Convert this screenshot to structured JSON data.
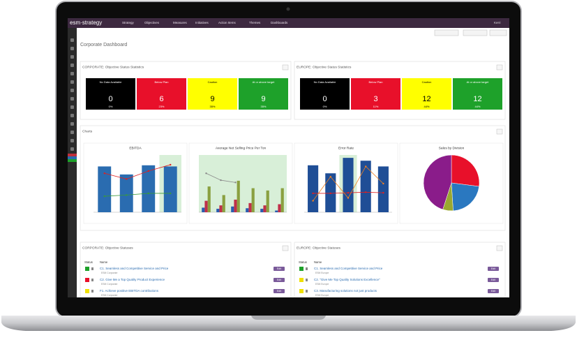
{
  "nav": {
    "logo": "esm·strategy",
    "items": [
      "Strategy",
      "Objectives",
      "Measures",
      "Initiatives",
      "Action Items",
      "Themes",
      "Dashboards"
    ],
    "user": "Kerri"
  },
  "page_title": "Corporate Dashboard",
  "stat_panels": [
    {
      "title": "CORPORATE: Objective Status Statistics",
      "tiles": [
        {
          "label": "No Data Available",
          "count": "0",
          "percent": "0%",
          "color": "#000000",
          "text_color": "#ffffff"
        },
        {
          "label": "Below Plan",
          "count": "6",
          "percent": "23%",
          "color": "#e8102a",
          "text_color": "#ffffff"
        },
        {
          "label": "Caution",
          "count": "9",
          "percent": "35%",
          "color": "#ffff00",
          "text_color": "#000000"
        },
        {
          "label": "At or above target",
          "count": "9",
          "percent": "35%",
          "color": "#1ea12a",
          "text_color": "#ffffff"
        }
      ]
    },
    {
      "title": "EUROPE: Objective Status Statistics",
      "tiles": [
        {
          "label": "No Data Available",
          "count": "0",
          "percent": "0%",
          "color": "#000000",
          "text_color": "#ffffff"
        },
        {
          "label": "Below Plan",
          "count": "3",
          "percent": "11%",
          "color": "#e8102a",
          "text_color": "#ffffff"
        },
        {
          "label": "Caution",
          "count": "12",
          "percent": "44%",
          "color": "#ffff00",
          "text_color": "#000000"
        },
        {
          "label": "At or above target",
          "count": "12",
          "percent": "44%",
          "color": "#1ea12a",
          "text_color": "#ffffff"
        }
      ]
    }
  ],
  "charts_panel": {
    "title": "Charts",
    "charts": [
      {
        "type": "combo",
        "title": "EBITDA",
        "ylim": [
          0,
          100
        ],
        "bars": [
          {
            "color": "#2a6cb0",
            "values": [
              80,
              66,
              82,
              80
            ]
          }
        ],
        "lines": [
          {
            "color": "#e02020",
            "values": [
              68,
              58,
              72,
              83
            ]
          },
          {
            "color": "#3a9a3a",
            "values": [
              28,
              30,
              33,
              33
            ]
          }
        ]
      },
      {
        "type": "combo",
        "title": "Average Net Selling Price Per Ton",
        "ylim": [
          0,
          100
        ],
        "bars": [
          {
            "color": "#2a5cb0",
            "values": [
              8,
              6,
              10,
              7,
              6,
              3
            ]
          },
          {
            "color": "#c0304a",
            "values": [
              20,
              12,
              22,
              16,
              12,
              14
            ]
          },
          {
            "color": "#8aa040",
            "values": [
              45,
              30,
              55,
              42,
              38,
              42
            ]
          }
        ],
        "lines": [
          {
            "color": "#8a8a8a",
            "values": [
              68,
              56,
              52,
              null,
              null,
              null
            ]
          }
        ]
      },
      {
        "type": "combo",
        "title": "Error Rate",
        "ylim": [
          0,
          100
        ],
        "bars": [
          {
            "color": "#1f4e96",
            "values": [
              82,
              68,
              95,
              90,
              80
            ]
          }
        ],
        "lines": [
          {
            "color": "#e02020",
            "values": [
              33,
              33,
              34,
              35,
              34
            ]
          },
          {
            "color": "#f08020",
            "values": [
              20,
              62,
              25,
              80,
              50
            ]
          }
        ]
      },
      {
        "type": "pie",
        "title": "Sales by Division",
        "slices": [
          {
            "color": "#e8102a",
            "value": 27
          },
          {
            "color": "#2a78c0",
            "value": 22
          },
          {
            "color": "#9aa830",
            "value": 6
          },
          {
            "color": "#8a1c8a",
            "value": 45
          }
        ]
      }
    ]
  },
  "status_panels": [
    {
      "title": "CORPORATE: Objective Statuses",
      "columns": [
        "Status",
        "Name"
      ],
      "action": "Edit",
      "rows": [
        {
          "status": "#1ea12a",
          "name": "C1. Seamless and Competitive Service and Price",
          "owner": "ESM Corporate"
        },
        {
          "status": "#e8102a",
          "name": "C2. Give Me a Top Quality Product Experience",
          "owner": "ESM Corporate"
        },
        {
          "status": "#f0e000",
          "name": "F1. Achieve positive EBITDA contributions",
          "owner": "ESM Corporate"
        }
      ]
    },
    {
      "title": "EUROPE: Objective Statuses",
      "columns": [
        "Status",
        "Name"
      ],
      "action": "Edit",
      "rows": [
        {
          "status": "#1ea12a",
          "name": "C1. Seamless and Competitive Service and Price",
          "owner": "ESM Europe"
        },
        {
          "status": "#f0e000",
          "name": "C2. \"Give Me Top Quality Solutions Excellence\"",
          "owner": "ESM Europe"
        },
        {
          "status": "#f0e000",
          "name": "C3. Manufacturing solutions not just products",
          "owner": "ESM Europe"
        }
      ]
    }
  ]
}
